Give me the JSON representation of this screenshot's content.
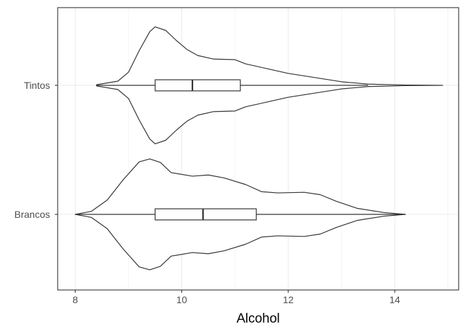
{
  "chart_data": {
    "type": "violin",
    "xlabel": "Alcohol",
    "ylabel": "",
    "xlim": [
      7.67,
      15.2
    ],
    "x_ticks": [
      8,
      10,
      12,
      14
    ],
    "x_tick_labels": [
      "8",
      "10",
      "12",
      "14"
    ],
    "categories": [
      "Tintos",
      "Brancos"
    ],
    "grid": true,
    "colors": {
      "outline": "#333333",
      "grid": "#ebebeb",
      "panel_border": "#333333",
      "tick_text": "#4d4d4d",
      "background": "#ffffff"
    },
    "series": [
      {
        "name": "Tintos",
        "range": [
          8.4,
          14.9
        ],
        "box": {
          "q1": 9.5,
          "median": 10.2,
          "q3": 11.1,
          "whisker_low": 8.4,
          "whisker_high": 13.5
        },
        "density": [
          [
            8.4,
            0.01
          ],
          [
            8.8,
            0.07
          ],
          [
            9.0,
            0.22
          ],
          [
            9.2,
            0.58
          ],
          [
            9.4,
            0.9
          ],
          [
            9.5,
            0.98
          ],
          [
            9.7,
            0.92
          ],
          [
            9.9,
            0.75
          ],
          [
            10.1,
            0.6
          ],
          [
            10.3,
            0.5
          ],
          [
            10.6,
            0.44
          ],
          [
            11.0,
            0.43
          ],
          [
            11.2,
            0.36
          ],
          [
            11.6,
            0.28
          ],
          [
            12.0,
            0.2
          ],
          [
            12.5,
            0.13
          ],
          [
            13.0,
            0.06
          ],
          [
            13.5,
            0.02
          ],
          [
            14.2,
            0.005
          ],
          [
            14.9,
            0.0
          ]
        ]
      },
      {
        "name": "Brancos",
        "range": [
          8.0,
          14.2
        ],
        "box": {
          "q1": 9.5,
          "median": 10.4,
          "q3": 11.4,
          "whisker_low": 8.0,
          "whisker_high": 14.2
        },
        "density": [
          [
            8.0,
            0.0
          ],
          [
            8.3,
            0.05
          ],
          [
            8.6,
            0.24
          ],
          [
            8.9,
            0.58
          ],
          [
            9.2,
            0.88
          ],
          [
            9.4,
            0.93
          ],
          [
            9.6,
            0.87
          ],
          [
            9.8,
            0.7
          ],
          [
            10.2,
            0.64
          ],
          [
            10.5,
            0.66
          ],
          [
            10.8,
            0.61
          ],
          [
            11.2,
            0.5
          ],
          [
            11.5,
            0.38
          ],
          [
            11.8,
            0.36
          ],
          [
            12.3,
            0.37
          ],
          [
            12.6,
            0.33
          ],
          [
            12.9,
            0.22
          ],
          [
            13.3,
            0.1
          ],
          [
            13.8,
            0.03
          ],
          [
            14.2,
            0.0
          ]
        ]
      }
    ]
  }
}
